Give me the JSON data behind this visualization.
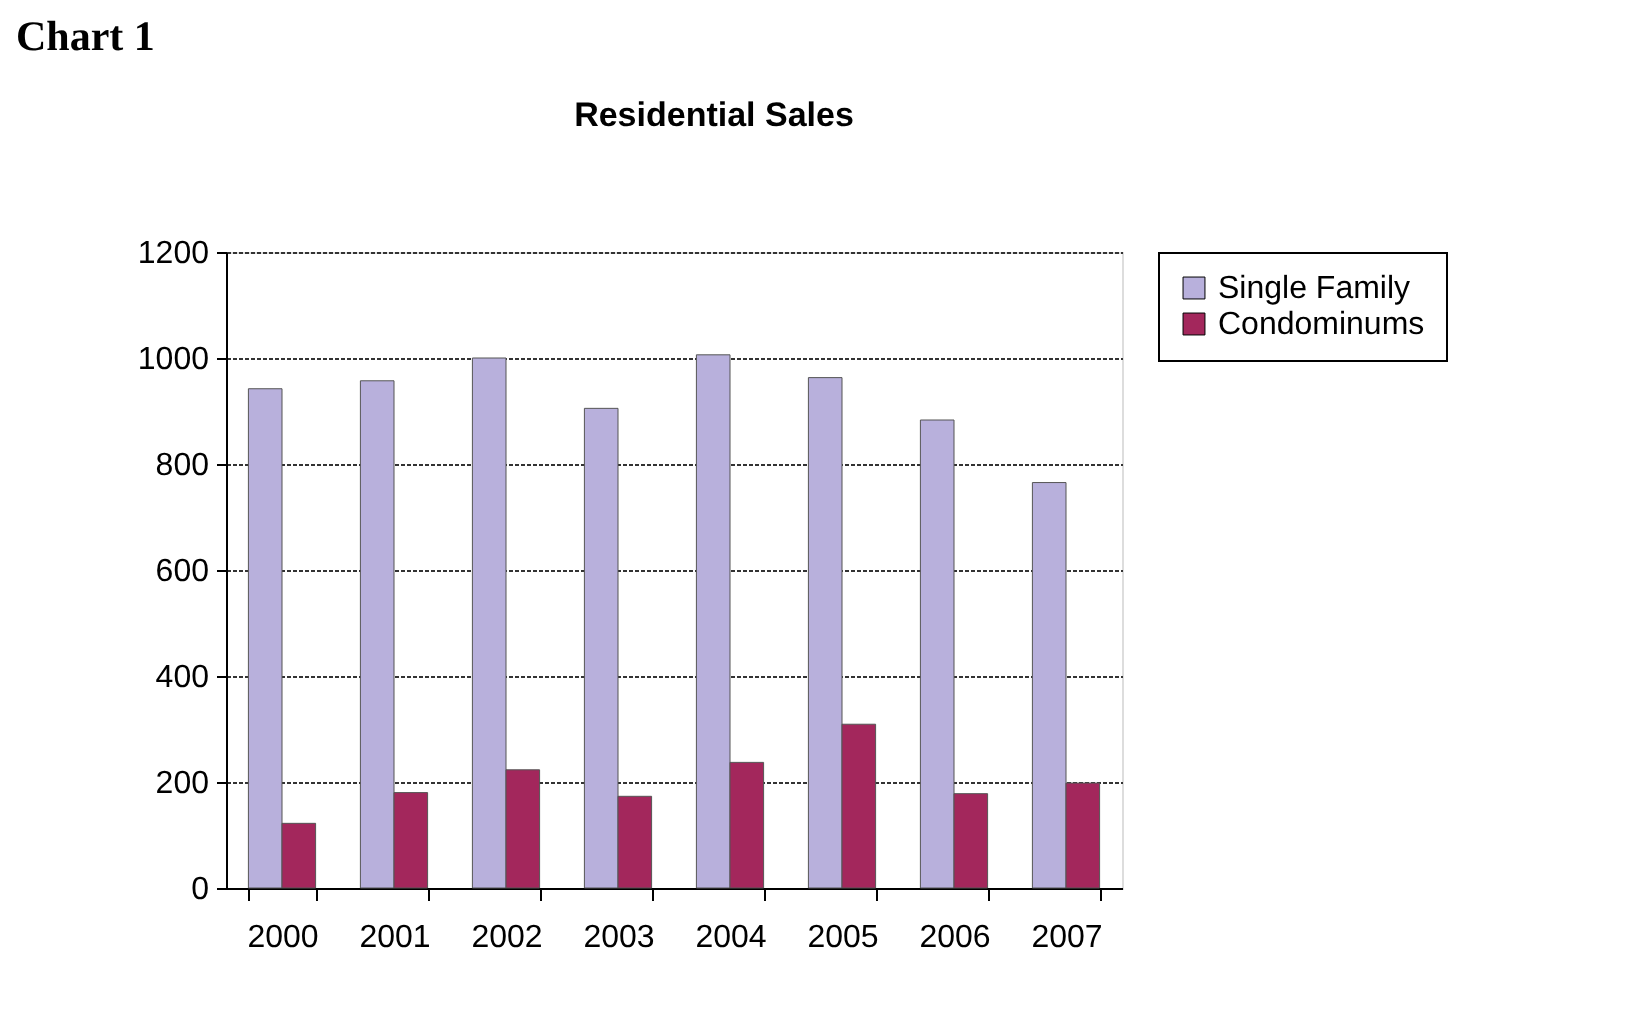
{
  "chart_data": {
    "type": "bar",
    "title": "Residential Sales",
    "annotations": [
      "Chart 1"
    ],
    "categories": [
      "2000",
      "2001",
      "2002",
      "2003",
      "2004",
      "2005",
      "2006",
      "2007"
    ],
    "series": [
      {
        "name": "Single Family",
        "color": "#b8b0dc",
        "values": [
          942,
          957,
          1000,
          905,
          1006,
          963,
          883,
          765
        ]
      },
      {
        "name": "Condominums",
        "color": "#a3275c",
        "values": [
          122,
          180,
          223,
          173,
          237,
          309,
          178,
          198
        ]
      }
    ],
    "ylim": [
      0,
      1200
    ],
    "yticks": [
      0,
      200,
      400,
      600,
      800,
      1000,
      1200
    ],
    "grid": "y",
    "legend": "right"
  }
}
